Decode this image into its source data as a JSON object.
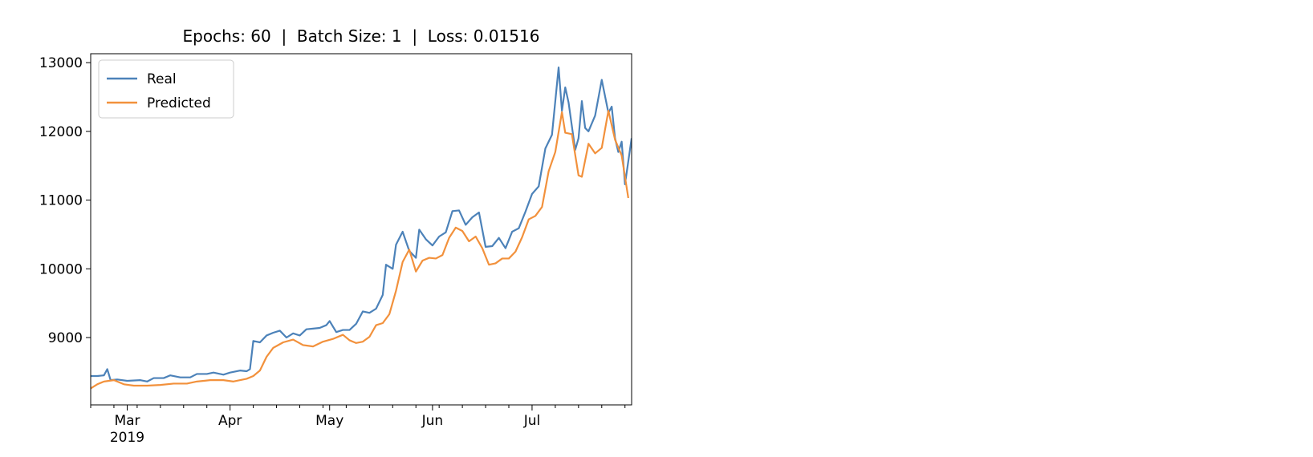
{
  "chart_data": {
    "type": "line",
    "title": "Epochs: 60  |  Batch Size: 1  |  Loss: 0.01516",
    "xlabel": "",
    "ylabel": "",
    "xlim": [
      "2019-02-18",
      "2019-07-31"
    ],
    "ylim": [
      8020,
      13130
    ],
    "grid": false,
    "legend_position": "upper left",
    "y_ticks": [
      9000,
      10000,
      11000,
      12000,
      13000
    ],
    "y_tick_labels": [
      "9000",
      "10000",
      "11000",
      "12000",
      "13000"
    ],
    "x_major_ticks": [
      {
        "date": "2019-03-01",
        "label": "Mar",
        "sublabel": "2019"
      },
      {
        "date": "2019-04-01",
        "label": "Apr",
        "sublabel": ""
      },
      {
        "date": "2019-05-01",
        "label": "May",
        "sublabel": ""
      },
      {
        "date": "2019-06-01",
        "label": "Jun",
        "sublabel": ""
      },
      {
        "date": "2019-07-01",
        "label": "Jul",
        "sublabel": ""
      }
    ],
    "x_minor_ticks": [
      "2019-02-18",
      "2019-02-25",
      "2019-03-04",
      "2019-03-11",
      "2019-03-18",
      "2019-03-25",
      "2019-04-08",
      "2019-04-15",
      "2019-04-22",
      "2019-04-29",
      "2019-05-06",
      "2019-05-13",
      "2019-05-20",
      "2019-05-27",
      "2019-06-03",
      "2019-06-10",
      "2019-06-17",
      "2019-06-24",
      "2019-07-08",
      "2019-07-15",
      "2019-07-22",
      "2019-07-29"
    ],
    "series": [
      {
        "name": "Real",
        "color": "#4c82b9",
        "points": [
          [
            "2019-02-18",
            8440
          ],
          [
            "2019-02-20",
            8440
          ],
          [
            "2019-02-22",
            8450
          ],
          [
            "2019-02-23",
            8540
          ],
          [
            "2019-02-24",
            8380
          ],
          [
            "2019-02-26",
            8390
          ],
          [
            "2019-03-01",
            8370
          ],
          [
            "2019-03-05",
            8380
          ],
          [
            "2019-03-07",
            8360
          ],
          [
            "2019-03-09",
            8410
          ],
          [
            "2019-03-12",
            8410
          ],
          [
            "2019-03-14",
            8450
          ],
          [
            "2019-03-17",
            8420
          ],
          [
            "2019-03-20",
            8420
          ],
          [
            "2019-03-22",
            8470
          ],
          [
            "2019-03-25",
            8470
          ],
          [
            "2019-03-27",
            8490
          ],
          [
            "2019-03-30",
            8460
          ],
          [
            "2019-04-01",
            8490
          ],
          [
            "2019-04-04",
            8520
          ],
          [
            "2019-04-06",
            8510
          ],
          [
            "2019-04-07",
            8540
          ],
          [
            "2019-04-08",
            8950
          ],
          [
            "2019-04-10",
            8930
          ],
          [
            "2019-04-12",
            9030
          ],
          [
            "2019-04-14",
            9070
          ],
          [
            "2019-04-16",
            9100
          ],
          [
            "2019-04-18",
            9000
          ],
          [
            "2019-04-20",
            9060
          ],
          [
            "2019-04-22",
            9030
          ],
          [
            "2019-04-24",
            9120
          ],
          [
            "2019-04-26",
            9130
          ],
          [
            "2019-04-28",
            9140
          ],
          [
            "2019-04-30",
            9180
          ],
          [
            "2019-05-01",
            9240
          ],
          [
            "2019-05-03",
            9080
          ],
          [
            "2019-05-05",
            9110
          ],
          [
            "2019-05-07",
            9110
          ],
          [
            "2019-05-09",
            9200
          ],
          [
            "2019-05-11",
            9380
          ],
          [
            "2019-05-13",
            9360
          ],
          [
            "2019-05-15",
            9420
          ],
          [
            "2019-05-17",
            9620
          ],
          [
            "2019-05-18",
            10060
          ],
          [
            "2019-05-20",
            10000
          ],
          [
            "2019-05-21",
            10350
          ],
          [
            "2019-05-23",
            10540
          ],
          [
            "2019-05-25",
            10260
          ],
          [
            "2019-05-27",
            10160
          ],
          [
            "2019-05-28",
            10570
          ],
          [
            "2019-05-30",
            10430
          ],
          [
            "2019-06-01",
            10340
          ],
          [
            "2019-06-03",
            10470
          ],
          [
            "2019-06-05",
            10530
          ],
          [
            "2019-06-07",
            10840
          ],
          [
            "2019-06-09",
            10850
          ],
          [
            "2019-06-11",
            10640
          ],
          [
            "2019-06-13",
            10750
          ],
          [
            "2019-06-15",
            10820
          ],
          [
            "2019-06-17",
            10320
          ],
          [
            "2019-06-19",
            10330
          ],
          [
            "2019-06-21",
            10450
          ],
          [
            "2019-06-23",
            10300
          ],
          [
            "2019-06-25",
            10540
          ],
          [
            "2019-06-27",
            10590
          ],
          [
            "2019-06-29",
            10830
          ],
          [
            "2019-07-01",
            11090
          ],
          [
            "2019-07-03",
            11200
          ],
          [
            "2019-07-05",
            11750
          ],
          [
            "2019-07-07",
            11950
          ],
          [
            "2019-07-09",
            12930
          ],
          [
            "2019-07-10",
            12300
          ],
          [
            "2019-07-11",
            12640
          ],
          [
            "2019-07-12",
            12420
          ],
          [
            "2019-07-14",
            11730
          ],
          [
            "2019-07-15",
            11900
          ],
          [
            "2019-07-16",
            12440
          ],
          [
            "2019-07-17",
            12050
          ],
          [
            "2019-07-18",
            12000
          ],
          [
            "2019-07-20",
            12230
          ],
          [
            "2019-07-22",
            12750
          ],
          [
            "2019-07-24",
            12270
          ],
          [
            "2019-07-25",
            12360
          ],
          [
            "2019-07-26",
            11900
          ],
          [
            "2019-07-27",
            11700
          ],
          [
            "2019-07-28",
            11850
          ],
          [
            "2019-07-29",
            11230
          ],
          [
            "2019-07-31",
            11900
          ]
        ]
      },
      {
        "name": "Predicted",
        "color": "#f2913c",
        "points": [
          [
            "2019-02-18",
            8260
          ],
          [
            "2019-02-20",
            8320
          ],
          [
            "2019-02-22",
            8360
          ],
          [
            "2019-02-25",
            8380
          ],
          [
            "2019-02-28",
            8320
          ],
          [
            "2019-03-03",
            8300
          ],
          [
            "2019-03-07",
            8300
          ],
          [
            "2019-03-11",
            8310
          ],
          [
            "2019-03-15",
            8330
          ],
          [
            "2019-03-19",
            8330
          ],
          [
            "2019-03-22",
            8360
          ],
          [
            "2019-03-26",
            8380
          ],
          [
            "2019-03-30",
            8380
          ],
          [
            "2019-04-02",
            8360
          ],
          [
            "2019-04-06",
            8400
          ],
          [
            "2019-04-08",
            8440
          ],
          [
            "2019-04-10",
            8520
          ],
          [
            "2019-04-12",
            8720
          ],
          [
            "2019-04-14",
            8850
          ],
          [
            "2019-04-17",
            8930
          ],
          [
            "2019-04-20",
            8970
          ],
          [
            "2019-04-23",
            8890
          ],
          [
            "2019-04-26",
            8870
          ],
          [
            "2019-04-29",
            8940
          ],
          [
            "2019-05-02",
            8980
          ],
          [
            "2019-05-05",
            9040
          ],
          [
            "2019-05-07",
            8960
          ],
          [
            "2019-05-09",
            8920
          ],
          [
            "2019-05-11",
            8940
          ],
          [
            "2019-05-13",
            9010
          ],
          [
            "2019-05-15",
            9180
          ],
          [
            "2019-05-17",
            9210
          ],
          [
            "2019-05-19",
            9340
          ],
          [
            "2019-05-21",
            9680
          ],
          [
            "2019-05-23",
            10100
          ],
          [
            "2019-05-25",
            10280
          ],
          [
            "2019-05-27",
            9960
          ],
          [
            "2019-05-29",
            10120
          ],
          [
            "2019-05-31",
            10160
          ],
          [
            "2019-06-02",
            10150
          ],
          [
            "2019-06-04",
            10200
          ],
          [
            "2019-06-06",
            10450
          ],
          [
            "2019-06-08",
            10600
          ],
          [
            "2019-06-10",
            10550
          ],
          [
            "2019-06-12",
            10400
          ],
          [
            "2019-06-14",
            10470
          ],
          [
            "2019-06-16",
            10300
          ],
          [
            "2019-06-18",
            10060
          ],
          [
            "2019-06-20",
            10080
          ],
          [
            "2019-06-22",
            10150
          ],
          [
            "2019-06-24",
            10150
          ],
          [
            "2019-06-26",
            10250
          ],
          [
            "2019-06-28",
            10460
          ],
          [
            "2019-06-30",
            10720
          ],
          [
            "2019-07-02",
            10770
          ],
          [
            "2019-07-04",
            10900
          ],
          [
            "2019-07-06",
            11420
          ],
          [
            "2019-07-08",
            11700
          ],
          [
            "2019-07-10",
            12280
          ],
          [
            "2019-07-11",
            11980
          ],
          [
            "2019-07-13",
            11960
          ],
          [
            "2019-07-15",
            11360
          ],
          [
            "2019-07-16",
            11340
          ],
          [
            "2019-07-18",
            11820
          ],
          [
            "2019-07-20",
            11680
          ],
          [
            "2019-07-22",
            11760
          ],
          [
            "2019-07-24",
            12300
          ],
          [
            "2019-07-26",
            11880
          ],
          [
            "2019-07-28",
            11650
          ],
          [
            "2019-07-30",
            11030
          ]
        ]
      }
    ]
  }
}
